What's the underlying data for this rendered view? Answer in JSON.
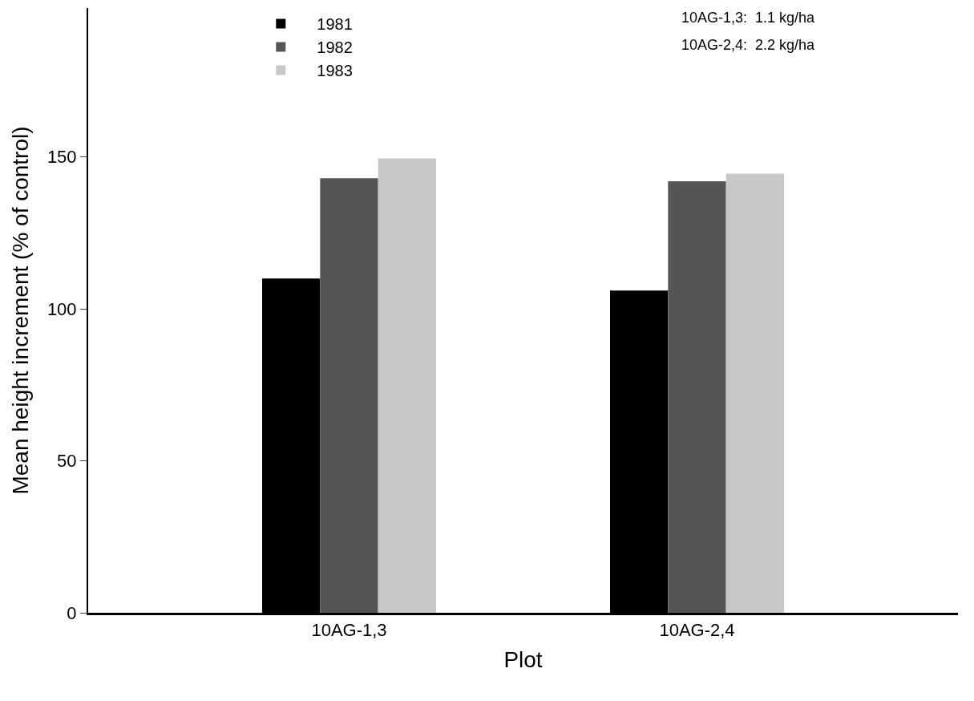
{
  "chart_data": {
    "type": "bar",
    "xlabel": "Plot",
    "ylabel": "Mean height increment (% of control)",
    "categories": [
      "10AG-1,3",
      "10AG-2,4"
    ],
    "series": [
      {
        "name": "1981",
        "color": "#000000",
        "values": [
          110,
          106
        ]
      },
      {
        "name": "1982",
        "color": "#555555",
        "values": [
          143,
          142
        ]
      },
      {
        "name": "1983",
        "color": "#c8c8c8",
        "values": [
          149.5,
          144.5
        ]
      }
    ],
    "ylim": [
      0,
      199
    ],
    "yticks": [
      0,
      50,
      100,
      150
    ],
    "legend": "top left",
    "annotations": [
      "10AG-1,3:  1.1 kg/ha",
      "10AG-2,4:  2.2 kg/ha"
    ]
  }
}
